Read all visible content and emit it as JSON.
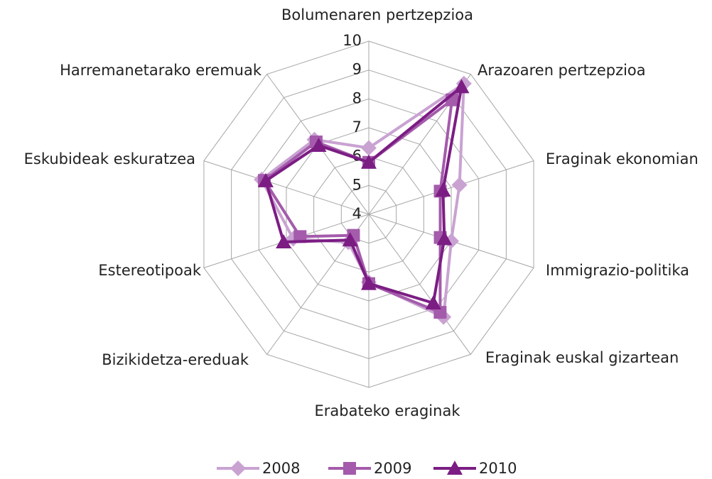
{
  "chart_data": {
    "type": "radar",
    "categories": [
      "Bolumenaren pertzepzioa",
      "Arazoaren pertzepzioa",
      "Eraginak ekonomian",
      "Immigrazio-politika",
      "Eraginak euskal gizartean",
      "Erabateko eraginak",
      "Bizikidetza-ereduak",
      "Estereotipoak",
      "Eskubideak eskuratzea",
      "Harremanetarako eremuak"
    ],
    "series": [
      {
        "name": "2008",
        "color": "#c9a2d2",
        "marker": "diamond",
        "values": [
          6.3,
          9.6,
          7.3,
          7.0,
          8.4,
          6.35,
          5.2,
          6.75,
          7.9,
          7.2
        ]
      },
      {
        "name": "2009",
        "color": "#a45bab",
        "marker": "square",
        "values": [
          5.8,
          8.9,
          6.6,
          6.6,
          8.2,
          6.4,
          4.9,
          6.5,
          7.8,
          7.1
        ]
      },
      {
        "name": "2010",
        "color": "#7b1d83",
        "marker": "triangle",
        "values": [
          5.8,
          9.46,
          6.7,
          6.75,
          7.8,
          6.4,
          5.1,
          7.1,
          7.75,
          6.95
        ]
      }
    ],
    "rlim": [
      4,
      10
    ],
    "rticks": [
      4,
      5,
      6,
      7,
      8,
      9,
      10
    ],
    "grid": true,
    "legend": "bottom"
  }
}
